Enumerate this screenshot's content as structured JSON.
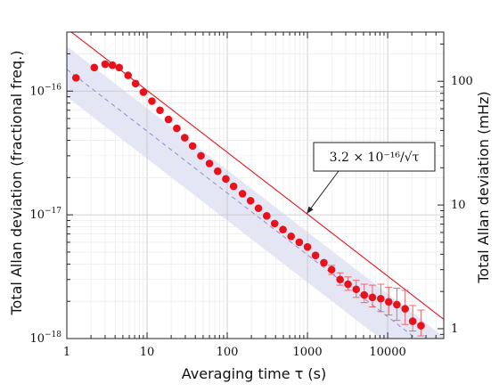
{
  "chart_data": {
    "type": "scatter",
    "xlabel": "Averaging time τ (s)",
    "ylabel": "Total Allan deviation (fractional freq.)",
    "ylabel_right": "Total Allan deviation (mHz)",
    "x_scale": "log",
    "y_scale": "log",
    "xlim": [
      1,
      50000
    ],
    "ylim": [
      1e-18,
      3e-16
    ],
    "x_ticks": [
      {
        "value": 1,
        "label": "1"
      },
      {
        "value": 10,
        "label": "10"
      },
      {
        "value": 100,
        "label": "100"
      },
      {
        "value": 1000,
        "label": "1000"
      },
      {
        "value": 10000,
        "label": "10000"
      }
    ],
    "y_ticks": [
      {
        "value": 1e-18,
        "label_base": "10",
        "label_exp": "−18"
      },
      {
        "value": 1e-17,
        "label_base": "10",
        "label_exp": "−17"
      },
      {
        "value": 1e-16,
        "label_base": "10",
        "label_exp": "−16"
      }
    ],
    "y_ticks_right": [
      {
        "value": 1,
        "label": "1"
      },
      {
        "value": 10,
        "label": "10"
      },
      {
        "value": 100,
        "label": "100"
      }
    ],
    "right_axis_scale": 8.33e+17,
    "grid": true,
    "series": [
      {
        "kind": "points",
        "color": "#e8121d",
        "points": [
          {
            "x": 1.3,
            "y": 1.28e-16
          },
          {
            "x": 2.2,
            "y": 1.55e-16
          },
          {
            "x": 3.0,
            "y": 1.65e-16
          },
          {
            "x": 3.7,
            "y": 1.62e-16
          },
          {
            "x": 4.5,
            "y": 1.55e-16
          },
          {
            "x": 5.8,
            "y": 1.34e-16
          },
          {
            "x": 7.2,
            "y": 1.15e-16
          },
          {
            "x": 9.0,
            "y": 9.8e-17
          },
          {
            "x": 11.5,
            "y": 8.3e-17
          },
          {
            "x": 14.5,
            "y": 7e-17
          },
          {
            "x": 18.5,
            "y": 5.9e-17
          },
          {
            "x": 23.5,
            "y": 5e-17
          },
          {
            "x": 29.5,
            "y": 4.2e-17
          },
          {
            "x": 37,
            "y": 3.6e-17
          },
          {
            "x": 47,
            "y": 3e-17
          },
          {
            "x": 60,
            "y": 2.6e-17
          },
          {
            "x": 76,
            "y": 2.25e-17
          },
          {
            "x": 96,
            "y": 1.95e-17
          },
          {
            "x": 120,
            "y": 1.7e-17
          },
          {
            "x": 155,
            "y": 1.48e-17
          },
          {
            "x": 195,
            "y": 1.3e-17
          },
          {
            "x": 245,
            "y": 1.13e-17
          },
          {
            "x": 310,
            "y": 9.8e-18
          },
          {
            "x": 390,
            "y": 8.5e-18
          },
          {
            "x": 495,
            "y": 7.6e-18
          },
          {
            "x": 625,
            "y": 6.7e-18
          },
          {
            "x": 790,
            "y": 6e-18
          },
          {
            "x": 1000,
            "y": 5.5e-18
          },
          {
            "x": 1260,
            "y": 4.7e-18
          },
          {
            "x": 1600,
            "y": 4.1e-18
          },
          {
            "x": 2000,
            "y": 3.6e-18,
            "err": [
              3.3e-18,
              3.9e-18
            ]
          },
          {
            "x": 2550,
            "y": 3e-18,
            "err": [
              2.7e-18,
              3.4e-18
            ]
          },
          {
            "x": 3200,
            "y": 2.75e-18,
            "err": [
              2.45e-18,
              3.15e-18
            ]
          },
          {
            "x": 4050,
            "y": 2.5e-18,
            "err": [
              2.15e-18,
              2.95e-18
            ]
          },
          {
            "x": 5100,
            "y": 2.25e-18,
            "err": [
              1.95e-18,
              2.75e-18
            ]
          },
          {
            "x": 6450,
            "y": 2.15e-18,
            "err": [
              1.8e-18,
              2.7e-18
            ]
          },
          {
            "x": 8200,
            "y": 2.1e-18,
            "err": [
              1.65e-18,
              2.75e-18
            ]
          },
          {
            "x": 10300,
            "y": 1.98e-18,
            "err": [
              1.55e-18,
              2.6e-18
            ]
          },
          {
            "x": 13000,
            "y": 1.88e-18,
            "err": [
              1.4e-18,
              2.55e-18
            ]
          },
          {
            "x": 16500,
            "y": 1.74e-18,
            "err": [
              1.3e-18,
              2.45e-18
            ]
          },
          {
            "x": 20500,
            "y": 1.38e-18,
            "err": [
              1.15e-18,
              1.85e-18
            ]
          },
          {
            "x": 26000,
            "y": 1.27e-18,
            "err": [
              1.05e-18,
              1.7e-18
            ]
          }
        ]
      },
      {
        "kind": "power-law-line",
        "color": "#e8121d",
        "a": 3.2e-16,
        "exponent": -0.5
      },
      {
        "kind": "power-law-line-dashed",
        "color": "#8a93c8",
        "a": 1.5e-16,
        "exponent": -0.5
      },
      {
        "kind": "power-law-band",
        "color": "#dfe1f3",
        "a_upper": 2.3e-16,
        "a_lower": 9e-17,
        "exponent": -0.5
      }
    ],
    "annotations": [
      {
        "text": "3.2 × 10⁻¹⁶/√τ",
        "arrow_to": {
          "x": 980,
          "y": 1.02e-17
        }
      }
    ]
  }
}
